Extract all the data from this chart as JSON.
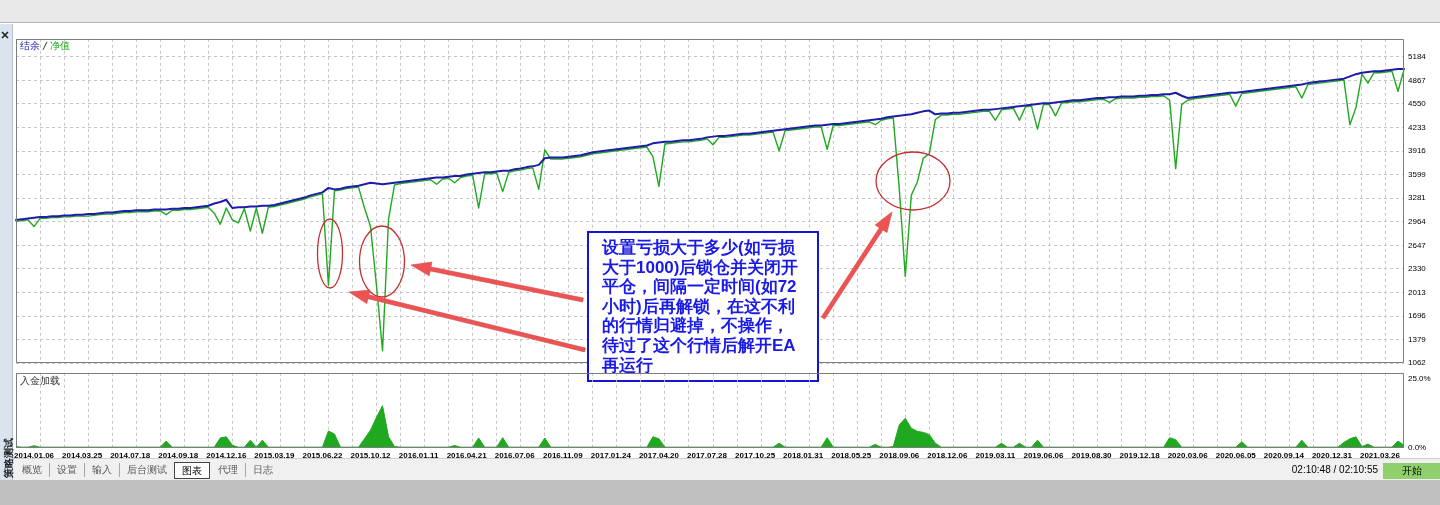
{
  "chart_data": [
    {
      "type": "line",
      "legend": "top left",
      "grid": true,
      "tick_labels": "y",
      "categories": [
        null,
        null,
        null,
        "2014.01.06",
        null,
        null,
        null,
        null,
        null,
        null,
        null,
        "2014.03.25",
        null,
        null,
        null,
        null,
        null,
        null,
        null,
        "2014.07.18",
        null,
        null,
        null,
        null,
        null,
        null,
        null,
        "2014.09.18",
        null,
        null,
        null,
        null,
        null,
        null,
        null,
        "2014.12.16",
        null,
        null,
        null,
        null,
        null,
        null,
        null,
        "2015.03.19",
        null,
        null,
        null,
        null,
        null,
        null,
        null,
        "2015.06.22",
        null,
        null,
        null,
        null,
        null,
        null,
        null,
        "2015.10.12",
        null,
        null,
        null,
        null,
        null,
        null,
        null,
        "2016.01.11",
        null,
        null,
        null,
        null,
        null,
        null,
        null,
        "2016.04.21",
        null,
        null,
        null,
        null,
        null,
        null,
        null,
        "2016.07.06",
        null,
        null,
        null,
        null,
        null,
        null,
        null,
        "2016.11.09",
        null,
        null,
        null,
        null,
        null,
        null,
        null,
        "2017.01.24",
        null,
        null,
        null,
        null,
        null,
        null,
        null,
        "2017.04.20",
        null,
        null,
        null,
        null,
        null,
        null,
        null,
        "2017.07.28",
        null,
        null,
        null,
        null,
        null,
        null,
        null,
        "2017.10.25",
        null,
        null,
        null,
        null,
        null,
        null,
        null,
        "2018.01.31",
        null,
        null,
        null,
        null,
        null,
        null,
        null,
        "2018.05.25",
        null,
        null,
        null,
        null,
        null,
        null,
        null,
        "2018.09.06",
        null,
        null,
        null,
        null,
        null,
        null,
        null,
        "2018.12.06",
        null,
        null,
        null,
        null,
        null,
        null,
        null,
        "2019.03.11",
        null,
        null,
        null,
        null,
        null,
        null,
        null,
        "2019.06.06",
        null,
        null,
        null,
        null,
        null,
        null,
        null,
        "2019.08.30",
        null,
        null,
        null,
        null,
        null,
        null,
        null,
        "2019.12.18",
        null,
        null,
        null,
        null,
        null,
        null,
        null,
        "2020.03.06",
        null,
        null,
        null,
        null,
        null,
        null,
        null,
        "2020.06.05",
        null,
        null,
        null,
        null,
        null,
        null,
        null,
        "2020.09.14",
        null,
        null,
        null,
        null,
        null,
        null,
        null,
        "2020.12.31",
        null,
        null,
        null,
        null,
        null,
        null,
        null,
        "2021.03.26",
        null,
        null,
        null,
        null
      ],
      "ylim": [
        1062,
        5426
      ],
      "yticks": [
        1062,
        1379,
        1696,
        2013,
        2330,
        2647,
        2964,
        3281,
        3599,
        3916,
        4233,
        4550,
        4867,
        5184
      ],
      "series": [
        {
          "name": "结余",
          "color": "#1c1ca8",
          "values": [
            2990,
            3000,
            3010,
            3020,
            3030,
            3030,
            3040,
            3040,
            3050,
            3050,
            3060,
            3060,
            3070,
            3070,
            3080,
            3090,
            3090,
            3100,
            3110,
            3110,
            3120,
            3120,
            3120,
            3130,
            3130,
            3130,
            3140,
            3140,
            3150,
            3150,
            3160,
            3170,
            3180,
            3210,
            3230,
            3260,
            3150,
            3160,
            3160,
            3170,
            3170,
            3180,
            3180,
            3190,
            3210,
            3230,
            3250,
            3270,
            3290,
            3320,
            3340,
            3360,
            3420,
            3400,
            3410,
            3430,
            3440,
            3450,
            3470,
            3490,
            3480,
            3470,
            3480,
            3490,
            3500,
            3510,
            3520,
            3530,
            3540,
            3550,
            3560,
            3560,
            3570,
            3580,
            3580,
            3600,
            3610,
            3620,
            3630,
            3630,
            3640,
            3650,
            3650,
            3670,
            3680,
            3700,
            3710,
            3730,
            3820,
            3830,
            3830,
            3830,
            3840,
            3850,
            3860,
            3880,
            3900,
            3910,
            3920,
            3930,
            3940,
            3950,
            3960,
            3970,
            3980,
            3990,
            4020,
            4030,
            4040,
            4040,
            4050,
            4060,
            4060,
            4070,
            4080,
            4100,
            4110,
            4120,
            4120,
            4130,
            4140,
            4150,
            4150,
            4160,
            4170,
            4180,
            4190,
            4200,
            4210,
            4220,
            4230,
            4240,
            4250,
            4260,
            4260,
            4270,
            4280,
            4280,
            4290,
            4300,
            4310,
            4320,
            4330,
            4340,
            4350,
            4370,
            4380,
            4390,
            4400,
            4410,
            4430,
            4450,
            4460,
            4410,
            4420,
            4420,
            4430,
            4430,
            4440,
            4450,
            4460,
            4470,
            4470,
            4480,
            4490,
            4500,
            4510,
            4520,
            4530,
            4540,
            4550,
            4560,
            4560,
            4570,
            4580,
            4590,
            4600,
            4600,
            4610,
            4620,
            4630,
            4630,
            4640,
            4640,
            4650,
            4650,
            4650,
            4660,
            4660,
            4670,
            4670,
            4680,
            4680,
            4700,
            4660,
            4630,
            4640,
            4650,
            4660,
            4670,
            4680,
            4690,
            4700,
            4700,
            4710,
            4720,
            4730,
            4740,
            4750,
            4760,
            4770,
            4780,
            4790,
            4800,
            4810,
            4830,
            4840,
            4850,
            4860,
            4870,
            4880,
            4890,
            4920,
            4950,
            4970,
            4980,
            4990,
            4990,
            5000,
            5010,
            5020,
            5020
          ]
        },
        {
          "name": "净值",
          "color": "#20a820",
          "values": [
            2970,
            2980,
            2990,
            2900,
            3010,
            3010,
            3020,
            3020,
            3030,
            3030,
            3040,
            3040,
            3040,
            3050,
            3060,
            3070,
            3070,
            3080,
            3090,
            3090,
            3100,
            3100,
            3100,
            3110,
            3110,
            3060,
            3120,
            3120,
            3130,
            3130,
            3140,
            3150,
            3160,
            3080,
            2930,
            3150,
            2990,
            2950,
            3140,
            2840,
            3150,
            2810,
            3160,
            3170,
            3190,
            3210,
            3230,
            3250,
            3270,
            3300,
            3320,
            3340,
            2110,
            3380,
            3390,
            3410,
            3420,
            3430,
            3150,
            2900,
            2100,
            1230,
            3000,
            3460,
            3480,
            3490,
            3500,
            3510,
            3520,
            3530,
            3470,
            3540,
            3550,
            3490,
            3560,
            3580,
            3590,
            3150,
            3610,
            3610,
            3620,
            3370,
            3630,
            3650,
            3660,
            3680,
            3690,
            3400,
            3930,
            3810,
            3810,
            3810,
            3820,
            3830,
            3840,
            3860,
            3880,
            3890,
            3900,
            3910,
            3920,
            3930,
            3940,
            3950,
            3960,
            3970,
            3840,
            3440,
            4010,
            4020,
            4030,
            4040,
            4040,
            4050,
            4060,
            4080,
            4000,
            4100,
            4100,
            4110,
            4120,
            4130,
            4130,
            4140,
            4150,
            4160,
            4170,
            3920,
            4190,
            4200,
            4210,
            4220,
            4230,
            4240,
            4240,
            3940,
            4260,
            4260,
            4270,
            4280,
            4290,
            4300,
            4310,
            4270,
            4330,
            4350,
            4360,
            3410,
            2230,
            3320,
            3500,
            3820,
            3880,
            4340,
            4400,
            4400,
            4410,
            4410,
            4420,
            4430,
            4440,
            4450,
            4450,
            4330,
            4470,
            4480,
            4490,
            4330,
            4510,
            4520,
            4210,
            4540,
            4540,
            4390,
            4560,
            4570,
            4580,
            4580,
            4590,
            4600,
            4610,
            4610,
            4570,
            4620,
            4630,
            4630,
            4630,
            4640,
            4640,
            4650,
            4650,
            4660,
            4600,
            3680,
            4540,
            4600,
            4620,
            4630,
            4640,
            4650,
            4660,
            4670,
            4680,
            4520,
            4690,
            4700,
            4710,
            4720,
            4730,
            4740,
            4750,
            4760,
            4770,
            4780,
            4630,
            4810,
            4820,
            4830,
            4840,
            4850,
            4860,
            4870,
            4270,
            4500,
            4950,
            4830,
            4970,
            4970,
            4980,
            4990,
            4720,
            5010
          ]
        }
      ],
      "annotations": [
        "设置亏损大于多少(如亏损大于1000)后锁仓并关闭开平仓，间隔一定时间(如72小时)后再解锁，在这不利的行情归避掉，不操作，待过了这个行情后解开EA再运行"
      ]
    },
    {
      "type": "area",
      "title": "入金加载",
      "grid": "x",
      "categories": [
        null,
        null,
        null,
        "2014.01.06",
        null,
        null,
        null,
        null,
        null,
        null,
        null,
        "2014.03.25",
        null,
        null,
        null,
        null,
        null,
        null,
        null,
        "2014.07.18",
        null,
        null,
        null,
        null,
        null,
        null,
        null,
        "2014.09.18",
        null,
        null,
        null,
        null,
        null,
        null,
        null,
        "2014.12.16",
        null,
        null,
        null,
        null,
        null,
        null,
        null,
        "2015.03.19",
        null,
        null,
        null,
        null,
        null,
        null,
        null,
        "2015.06.22",
        null,
        null,
        null,
        null,
        null,
        null,
        null,
        "2015.10.12",
        null,
        null,
        null,
        null,
        null,
        null,
        null,
        "2016.01.11",
        null,
        null,
        null,
        null,
        null,
        null,
        null,
        "2016.04.21",
        null,
        null,
        null,
        null,
        null,
        null,
        null,
        "2016.07.06",
        null,
        null,
        null,
        null,
        null,
        null,
        null,
        "2016.11.09",
        null,
        null,
        null,
        null,
        null,
        null,
        null,
        "2017.01.24",
        null,
        null,
        null,
        null,
        null,
        null,
        null,
        "2017.04.20",
        null,
        null,
        null,
        null,
        null,
        null,
        null,
        "2017.07.28",
        null,
        null,
        null,
        null,
        null,
        null,
        null,
        "2017.10.25",
        null,
        null,
        null,
        null,
        null,
        null,
        null,
        "2018.01.31",
        null,
        null,
        null,
        null,
        null,
        null,
        null,
        "2018.05.25",
        null,
        null,
        null,
        null,
        null,
        null,
        null,
        "2018.09.06",
        null,
        null,
        null,
        null,
        null,
        null,
        null,
        "2018.12.06",
        null,
        null,
        null,
        null,
        null,
        null,
        null,
        "2019.03.11",
        null,
        null,
        null,
        null,
        null,
        null,
        null,
        "2019.06.06",
        null,
        null,
        null,
        null,
        null,
        null,
        null,
        "2019.08.30",
        null,
        null,
        null,
        null,
        null,
        null,
        null,
        "2019.12.18",
        null,
        null,
        null,
        null,
        null,
        null,
        null,
        "2020.03.06",
        null,
        null,
        null,
        null,
        null,
        null,
        null,
        "2020.06.05",
        null,
        null,
        null,
        null,
        null,
        null,
        null,
        "2020.09.14",
        null,
        null,
        null,
        null,
        null,
        null,
        null,
        "2020.12.31",
        null,
        null,
        null,
        null,
        null,
        null,
        null,
        "2021.03.26",
        null,
        null,
        null,
        null
      ],
      "ylim": [
        0,
        27
      ],
      "yticks": [
        {
          "value": 0,
          "label": "0.0%"
        },
        {
          "value": 25,
          "label": "25.0%"
        }
      ],
      "series": [
        {
          "color": "#20a820",
          "values": [
            0.5,
            0.3,
            0.3,
            0.8,
            0.3,
            0.3,
            0.3,
            0.3,
            0.3,
            0.3,
            0.3,
            0.3,
            0.3,
            0.3,
            0.3,
            0.3,
            0.3,
            0.3,
            0.3,
            0.3,
            0.3,
            0.3,
            0.3,
            0.3,
            0.3,
            2.5,
            0.3,
            0.3,
            0.3,
            0.3,
            0.3,
            0.3,
            0.3,
            0.3,
            3.6,
            4.0,
            1.0,
            0.3,
            0.3,
            2.8,
            0.3,
            2.8,
            0.3,
            0.3,
            0.3,
            0.3,
            0.3,
            0.3,
            0.3,
            0.3,
            0.3,
            0.3,
            6.1,
            5.0,
            0.3,
            0.3,
            0.3,
            0.3,
            3.3,
            6.4,
            11.0,
            15.2,
            4.0,
            0.5,
            0.3,
            0.3,
            0.3,
            0.3,
            0.3,
            0.3,
            0.3,
            0.3,
            0.3,
            0.9,
            0.3,
            0.3,
            0.3,
            3.6,
            0.3,
            0.3,
            0.3,
            3.7,
            0.3,
            0.3,
            0.3,
            0.3,
            0.3,
            0.3,
            3.6,
            0.3,
            0.3,
            0.3,
            0.3,
            0.3,
            0.3,
            0.3,
            0.3,
            0.3,
            0.3,
            0.3,
            0.3,
            0.3,
            0.3,
            0.3,
            0.3,
            0.3,
            4.0,
            3.3,
            0.3,
            0.3,
            0.3,
            0.3,
            0.3,
            0.3,
            0.3,
            0.3,
            0.3,
            0.3,
            0.3,
            0.3,
            0.3,
            0.3,
            0.3,
            0.3,
            0.3,
            0.3,
            0.3,
            1.7,
            0.3,
            0.3,
            0.3,
            0.3,
            0.3,
            0.3,
            0.3,
            3.7,
            0.3,
            0.3,
            0.3,
            0.3,
            0.3,
            0.3,
            0.3,
            1.3,
            0.3,
            0.3,
            0.5,
            8.3,
            10.7,
            7.1,
            6.0,
            5.6,
            4.8,
            1.7,
            0.3,
            0.3,
            0.3,
            0.3,
            0.3,
            0.3,
            0.3,
            0.3,
            0.3,
            0.3,
            1.7,
            0.3,
            0.3,
            1.7,
            0.3,
            0.3,
            2.8,
            0.3,
            0.3,
            0.3,
            0.3,
            0.3,
            0.3,
            0.3,
            0.3,
            0.3,
            0.3,
            0.3,
            0.3,
            0.3,
            0.3,
            0.3,
            0.3,
            0.3,
            0.3,
            0.3,
            0.3,
            0.3,
            3.7,
            3.0,
            0.3,
            0.3,
            0.3,
            0.3,
            0.3,
            0.3,
            0.3,
            0.3,
            0.3,
            0.3,
            2.2,
            0.3,
            0.3,
            0.3,
            0.3,
            0.3,
            0.3,
            0.3,
            0.3,
            0.3,
            2.8,
            0.3,
            0.3,
            0.3,
            0.3,
            0.3,
            0.3,
            2.0,
            3.3,
            4.0,
            0.5,
            1.4,
            0.3,
            0.3,
            0.3,
            0.3,
            2.5,
            1.0
          ]
        }
      ]
    },
    {
      "type": "other",
      "annotations": [
        "策略测试",
        "概览",
        "设置",
        "输入",
        "后台测试",
        "图表",
        "代理",
        "日志",
        "02:10:48 / 02:10:55",
        "开始"
      ]
    }
  ]
}
